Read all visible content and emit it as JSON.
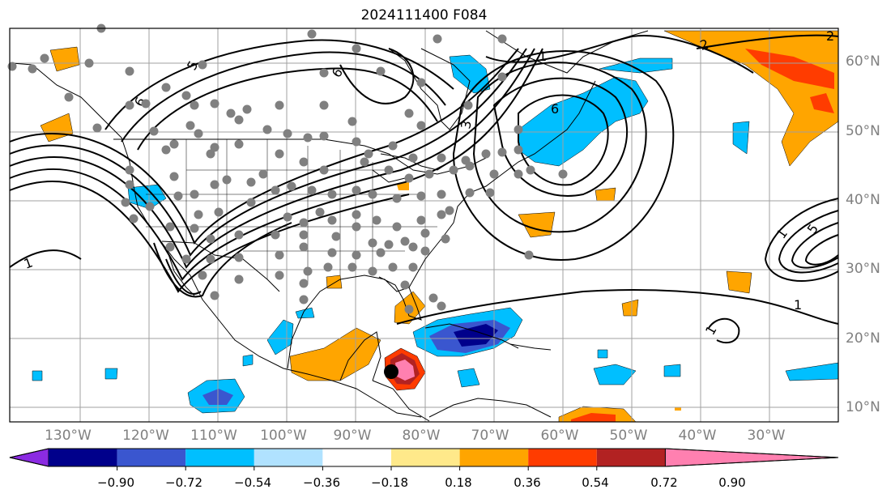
{
  "title": "2024111400 F084",
  "lat_labels": [
    "60°N",
    "50°N",
    "40°N",
    "30°N",
    "20°N",
    "10°N"
  ],
  "lon_labels": [
    "130°W",
    "120°W",
    "110°W",
    "100°W",
    "90°W",
    "80°W",
    "70°W",
    "60°W",
    "50°W",
    "40°W",
    "30°W"
  ],
  "contour_labels": [
    "1",
    "2",
    "6",
    "6",
    "5",
    "3",
    "6",
    "1",
    "1",
    "1",
    "1",
    "5",
    "2"
  ],
  "colorbar": {
    "ticks": [
      "−0.90",
      "−0.72",
      "−0.54",
      "−0.36",
      "−0.18",
      "0.18",
      "0.36",
      "0.54",
      "0.72",
      "0.90"
    ],
    "colors": [
      "#8b2be2",
      "#00008b",
      "#3a56cf",
      "#00bfff",
      "#b0e2ff",
      "#ffffff",
      "#ffe98a",
      "#ffa500",
      "#ff3c00",
      "#b22222",
      "#ff80b0"
    ]
  },
  "colors": {
    "gridline": "#a0a0a0",
    "coastline": "#000000",
    "label": "#808080",
    "marker": "#808080",
    "storm_marker": "#000000"
  }
}
